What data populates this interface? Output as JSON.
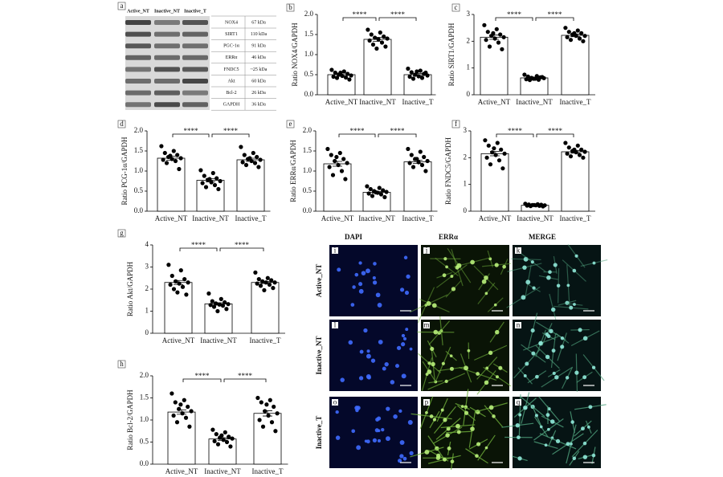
{
  "chart_data": [
    {
      "type": "bar",
      "panel": "b",
      "ylabel": "Ratio NOX4/GAPDH",
      "categories": [
        "Active_NT",
        "Inactive_NT",
        "Inactive_T"
      ],
      "values": [
        0.5,
        1.38,
        0.5
      ],
      "errors": [
        0.04,
        0.05,
        0.03
      ],
      "points": [
        [
          0.62,
          0.58,
          0.55,
          0.52,
          0.5,
          0.48,
          0.47,
          0.45,
          0.43,
          0.42,
          0.38,
          0.55
        ],
        [
          1.62,
          1.55,
          1.5,
          1.45,
          1.42,
          1.4,
          1.38,
          1.35,
          1.3,
          1.25,
          1.2,
          1.15
        ],
        [
          0.65,
          0.6,
          0.56,
          0.52,
          0.5,
          0.48,
          0.46,
          0.45,
          0.42,
          0.4,
          0.55,
          0.58
        ]
      ],
      "ylim": [
        0,
        2
      ],
      "yticks": [
        {
          "value": 0,
          "label": "0.0"
        },
        0.5,
        {
          "value": 1,
          "label": "1.0"
        },
        1.5,
        {
          "value": 2,
          "label": "2.0"
        }
      ],
      "significance": [
        "****",
        "****"
      ]
    },
    {
      "type": "bar",
      "panel": "c",
      "ylabel": "Ratio SIRT1/GAPDH",
      "categories": [
        "Active_NT",
        "Inactive_NT",
        "Inactive_T"
      ],
      "values": [
        2.15,
        0.63,
        2.22
      ],
      "errors": [
        0.08,
        0.02,
        0.05
      ],
      "points": [
        [
          2.6,
          2.45,
          2.35,
          2.25,
          2.2,
          2.15,
          2.1,
          2.05,
          1.95,
          1.8,
          1.7,
          2.3
        ],
        [
          0.75,
          0.7,
          0.68,
          0.65,
          0.63,
          0.62,
          0.6,
          0.58,
          0.56,
          0.55,
          0.66,
          0.6
        ],
        [
          2.5,
          2.4,
          2.35,
          2.3,
          2.25,
          2.2,
          2.2,
          2.15,
          2.1,
          2.05,
          2.0,
          2.3
        ]
      ],
      "ylim": [
        0,
        3
      ],
      "yticks": [
        0,
        1,
        2,
        3
      ],
      "significance": [
        "****",
        "****"
      ]
    },
    {
      "type": "bar",
      "panel": "d",
      "ylabel": "Ratio PCG-1α/GAPDH",
      "categories": [
        "Active_NT",
        "Inactive_NT",
        "Inactive_T"
      ],
      "values": [
        1.32,
        0.77,
        1.28
      ],
      "errors": [
        0.05,
        0.04,
        0.04
      ],
      "points": [
        [
          1.62,
          1.5,
          1.45,
          1.4,
          1.35,
          1.32,
          1.3,
          1.28,
          1.25,
          1.2,
          1.05,
          1.38
        ],
        [
          1.02,
          0.95,
          0.88,
          0.82,
          0.78,
          0.75,
          0.72,
          0.7,
          0.65,
          0.6,
          0.55,
          0.8
        ],
        [
          1.6,
          1.45,
          1.4,
          1.35,
          1.3,
          1.28,
          1.25,
          1.22,
          1.2,
          1.15,
          1.1,
          1.32
        ]
      ],
      "ylim": [
        0,
        2
      ],
      "yticks": [
        {
          "value": 0,
          "label": "0.0"
        },
        0.5,
        {
          "value": 1,
          "label": "1.0"
        },
        1.5,
        {
          "value": 2,
          "label": "2.0"
        }
      ],
      "significance": [
        "****",
        "****"
      ]
    },
    {
      "type": "bar",
      "panel": "e",
      "ylabel": "Ratio ERRα/GAPDH",
      "categories": [
        "Active_NT",
        "Inactive_NT",
        "Inactive_T"
      ],
      "values": [
        1.18,
        0.47,
        1.23
      ],
      "errors": [
        0.06,
        0.02,
        0.04
      ],
      "points": [
        [
          1.55,
          1.45,
          1.4,
          1.3,
          1.25,
          1.2,
          1.15,
          1.1,
          1.0,
          0.9,
          0.8,
          1.35
        ],
        [
          0.62,
          0.58,
          0.55,
          0.52,
          0.5,
          0.48,
          0.46,
          0.44,
          0.42,
          0.38,
          0.35,
          0.47
        ],
        [
          1.55,
          1.48,
          1.4,
          1.35,
          1.3,
          1.25,
          1.22,
          1.2,
          1.15,
          1.1,
          1.0,
          1.3
        ]
      ],
      "ylim": [
        0,
        2
      ],
      "yticks": [
        {
          "value": 0,
          "label": "0.0"
        },
        0.5,
        {
          "value": 1,
          "label": "1.0"
        },
        1.5,
        {
          "value": 2,
          "label": "2.0"
        }
      ],
      "significance": [
        "****",
        "****"
      ]
    },
    {
      "type": "bar",
      "panel": "f",
      "ylabel": "Ratio FNDC5/GAPDH",
      "categories": [
        "Active_NT",
        "Inactive_NT",
        "Inactive_T"
      ],
      "values": [
        2.15,
        0.22,
        2.22
      ],
      "errors": [
        0.08,
        0.01,
        0.05
      ],
      "points": [
        [
          2.65,
          2.55,
          2.45,
          2.3,
          2.2,
          2.15,
          2.1,
          2.0,
          1.9,
          1.75,
          1.6,
          2.35
        ],
        [
          0.28,
          0.26,
          0.25,
          0.24,
          0.23,
          0.22,
          0.22,
          0.21,
          0.2,
          0.19,
          0.18,
          0.23
        ],
        [
          2.55,
          2.45,
          2.38,
          2.3,
          2.25,
          2.22,
          2.2,
          2.15,
          2.1,
          2.05,
          2.0,
          2.3
        ]
      ],
      "ylim": [
        0,
        3
      ],
      "yticks": [
        0,
        1,
        2,
        3
      ],
      "significance": [
        "****",
        "****"
      ]
    },
    {
      "type": "bar",
      "panel": "g",
      "ylabel": "Ratio Akt/GAPDH",
      "categories": [
        "Active_NT",
        "Inactive_NT",
        "Inactive_T"
      ],
      "values": [
        2.3,
        1.33,
        2.3
      ],
      "errors": [
        0.09,
        0.05,
        0.05
      ],
      "points": [
        [
          3.1,
          2.85,
          2.6,
          2.45,
          2.35,
          2.3,
          2.25,
          2.2,
          2.1,
          2.0,
          1.75,
          1.85
        ],
        [
          1.8,
          1.55,
          1.45,
          1.4,
          1.35,
          1.32,
          1.3,
          1.28,
          1.25,
          1.2,
          1.1,
          1.0
        ],
        [
          2.75,
          2.5,
          2.45,
          2.4,
          2.35,
          2.3,
          2.3,
          2.25,
          2.2,
          2.15,
          2.05,
          1.95
        ]
      ],
      "ylim": [
        0,
        4
      ],
      "yticks": [
        0,
        1,
        2,
        3,
        4
      ],
      "significance": [
        "****",
        "****"
      ]
    },
    {
      "type": "bar",
      "panel": "h",
      "ylabel": "Ratio Bcl-2/GAPDH",
      "categories": [
        "Active_NT",
        "Inactive_NT",
        "Inactive_T"
      ],
      "values": [
        1.18,
        0.57,
        1.15
      ],
      "errors": [
        0.05,
        0.03,
        0.06
      ],
      "points": [
        [
          1.6,
          1.45,
          1.4,
          1.3,
          1.25,
          1.2,
          1.15,
          1.1,
          1.05,
          0.95,
          0.85,
          1.35
        ],
        [
          0.78,
          0.72,
          0.68,
          0.62,
          0.6,
          0.58,
          0.55,
          0.52,
          0.5,
          0.45,
          0.4,
          0.65
        ],
        [
          1.5,
          1.45,
          1.4,
          1.3,
          1.2,
          1.15,
          1.1,
          1.0,
          0.95,
          0.85,
          0.75,
          1.35
        ]
      ],
      "ylim": [
        0,
        2
      ],
      "yticks": [
        {
          "value": 0,
          "label": "0.0"
        },
        0.5,
        {
          "value": 1,
          "label": "1.0"
        },
        1.5,
        {
          "value": 2,
          "label": "2.0"
        }
      ],
      "significance": [
        "****",
        "****"
      ]
    }
  ],
  "blot_panel": {
    "panel": "a",
    "lanes": [
      "Active_NT",
      "Inactive_NT",
      "Inactive_T"
    ],
    "proteins": [
      {
        "name": "NOX4",
        "size": "67 kDa"
      },
      {
        "name": "SIRT1",
        "size": "110 kDa"
      },
      {
        "name": "PGC-1α",
        "size": "91 kDa"
      },
      {
        "name": "ERRα",
        "size": "46 kDa"
      },
      {
        "name": "FNDC5",
        "size": "~25 kDa"
      },
      {
        "name": "Akt",
        "size": "60 kDa"
      },
      {
        "name": "Bcl-2",
        "size": "26 kDa"
      },
      {
        "name": "GAPDH",
        "size": "36 kDa"
      }
    ]
  },
  "micrograph_panel": {
    "columns": [
      "DAPI",
      "ERRα",
      "MERGE"
    ],
    "rows": [
      "Active_NT",
      "Inactive_NT",
      "Inactive_T"
    ],
    "panels": [
      "i",
      "j",
      "k",
      "l",
      "m",
      "n",
      "o",
      "p",
      "q"
    ]
  }
}
